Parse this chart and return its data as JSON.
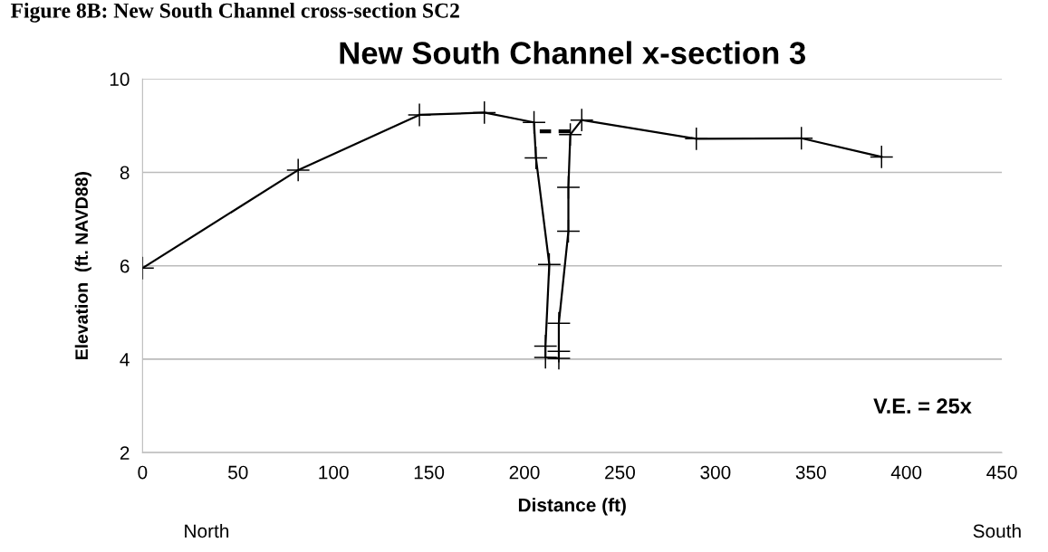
{
  "chart_data": {
    "type": "line",
    "title": "New South Channel x-section 3",
    "xlabel": "Distance (ft)",
    "ylabel": "Elevation  (ft. NAVD88)",
    "xlim": [
      0,
      450
    ],
    "xticks": [
      0,
      50,
      100,
      150,
      200,
      250,
      300,
      350,
      400,
      450
    ],
    "ylim": [
      2,
      10
    ],
    "yticks": [
      2,
      4,
      6,
      8,
      10
    ],
    "grid": "y",
    "marker": "cross",
    "series": [
      {
        "color": "#000000",
        "line_style": "solid",
        "x": [
          0,
          81.5,
          145,
          179,
          205,
          206,
          213,
          211,
          211,
          218,
          218,
          218,
          223,
          223,
          224,
          230,
          290,
          345,
          387
        ],
        "values": [
          5.95,
          8.05,
          9.23,
          9.28,
          9.07,
          8.31,
          6.03,
          4.28,
          4.04,
          4.02,
          4.17,
          4.77,
          6.74,
          7.68,
          8.81,
          9.12,
          8.72,
          8.73,
          8.33
        ]
      },
      {
        "color": "#000000",
        "marker": "none",
        "line_style": "dashed",
        "x": [
          208,
          224
        ],
        "values": [
          8.88,
          8.88
        ]
      }
    ],
    "annotations": [
      "Figure 8B: New South Channel cross-section SC2",
      "V.E. = 25x",
      "North",
      "South"
    ]
  }
}
